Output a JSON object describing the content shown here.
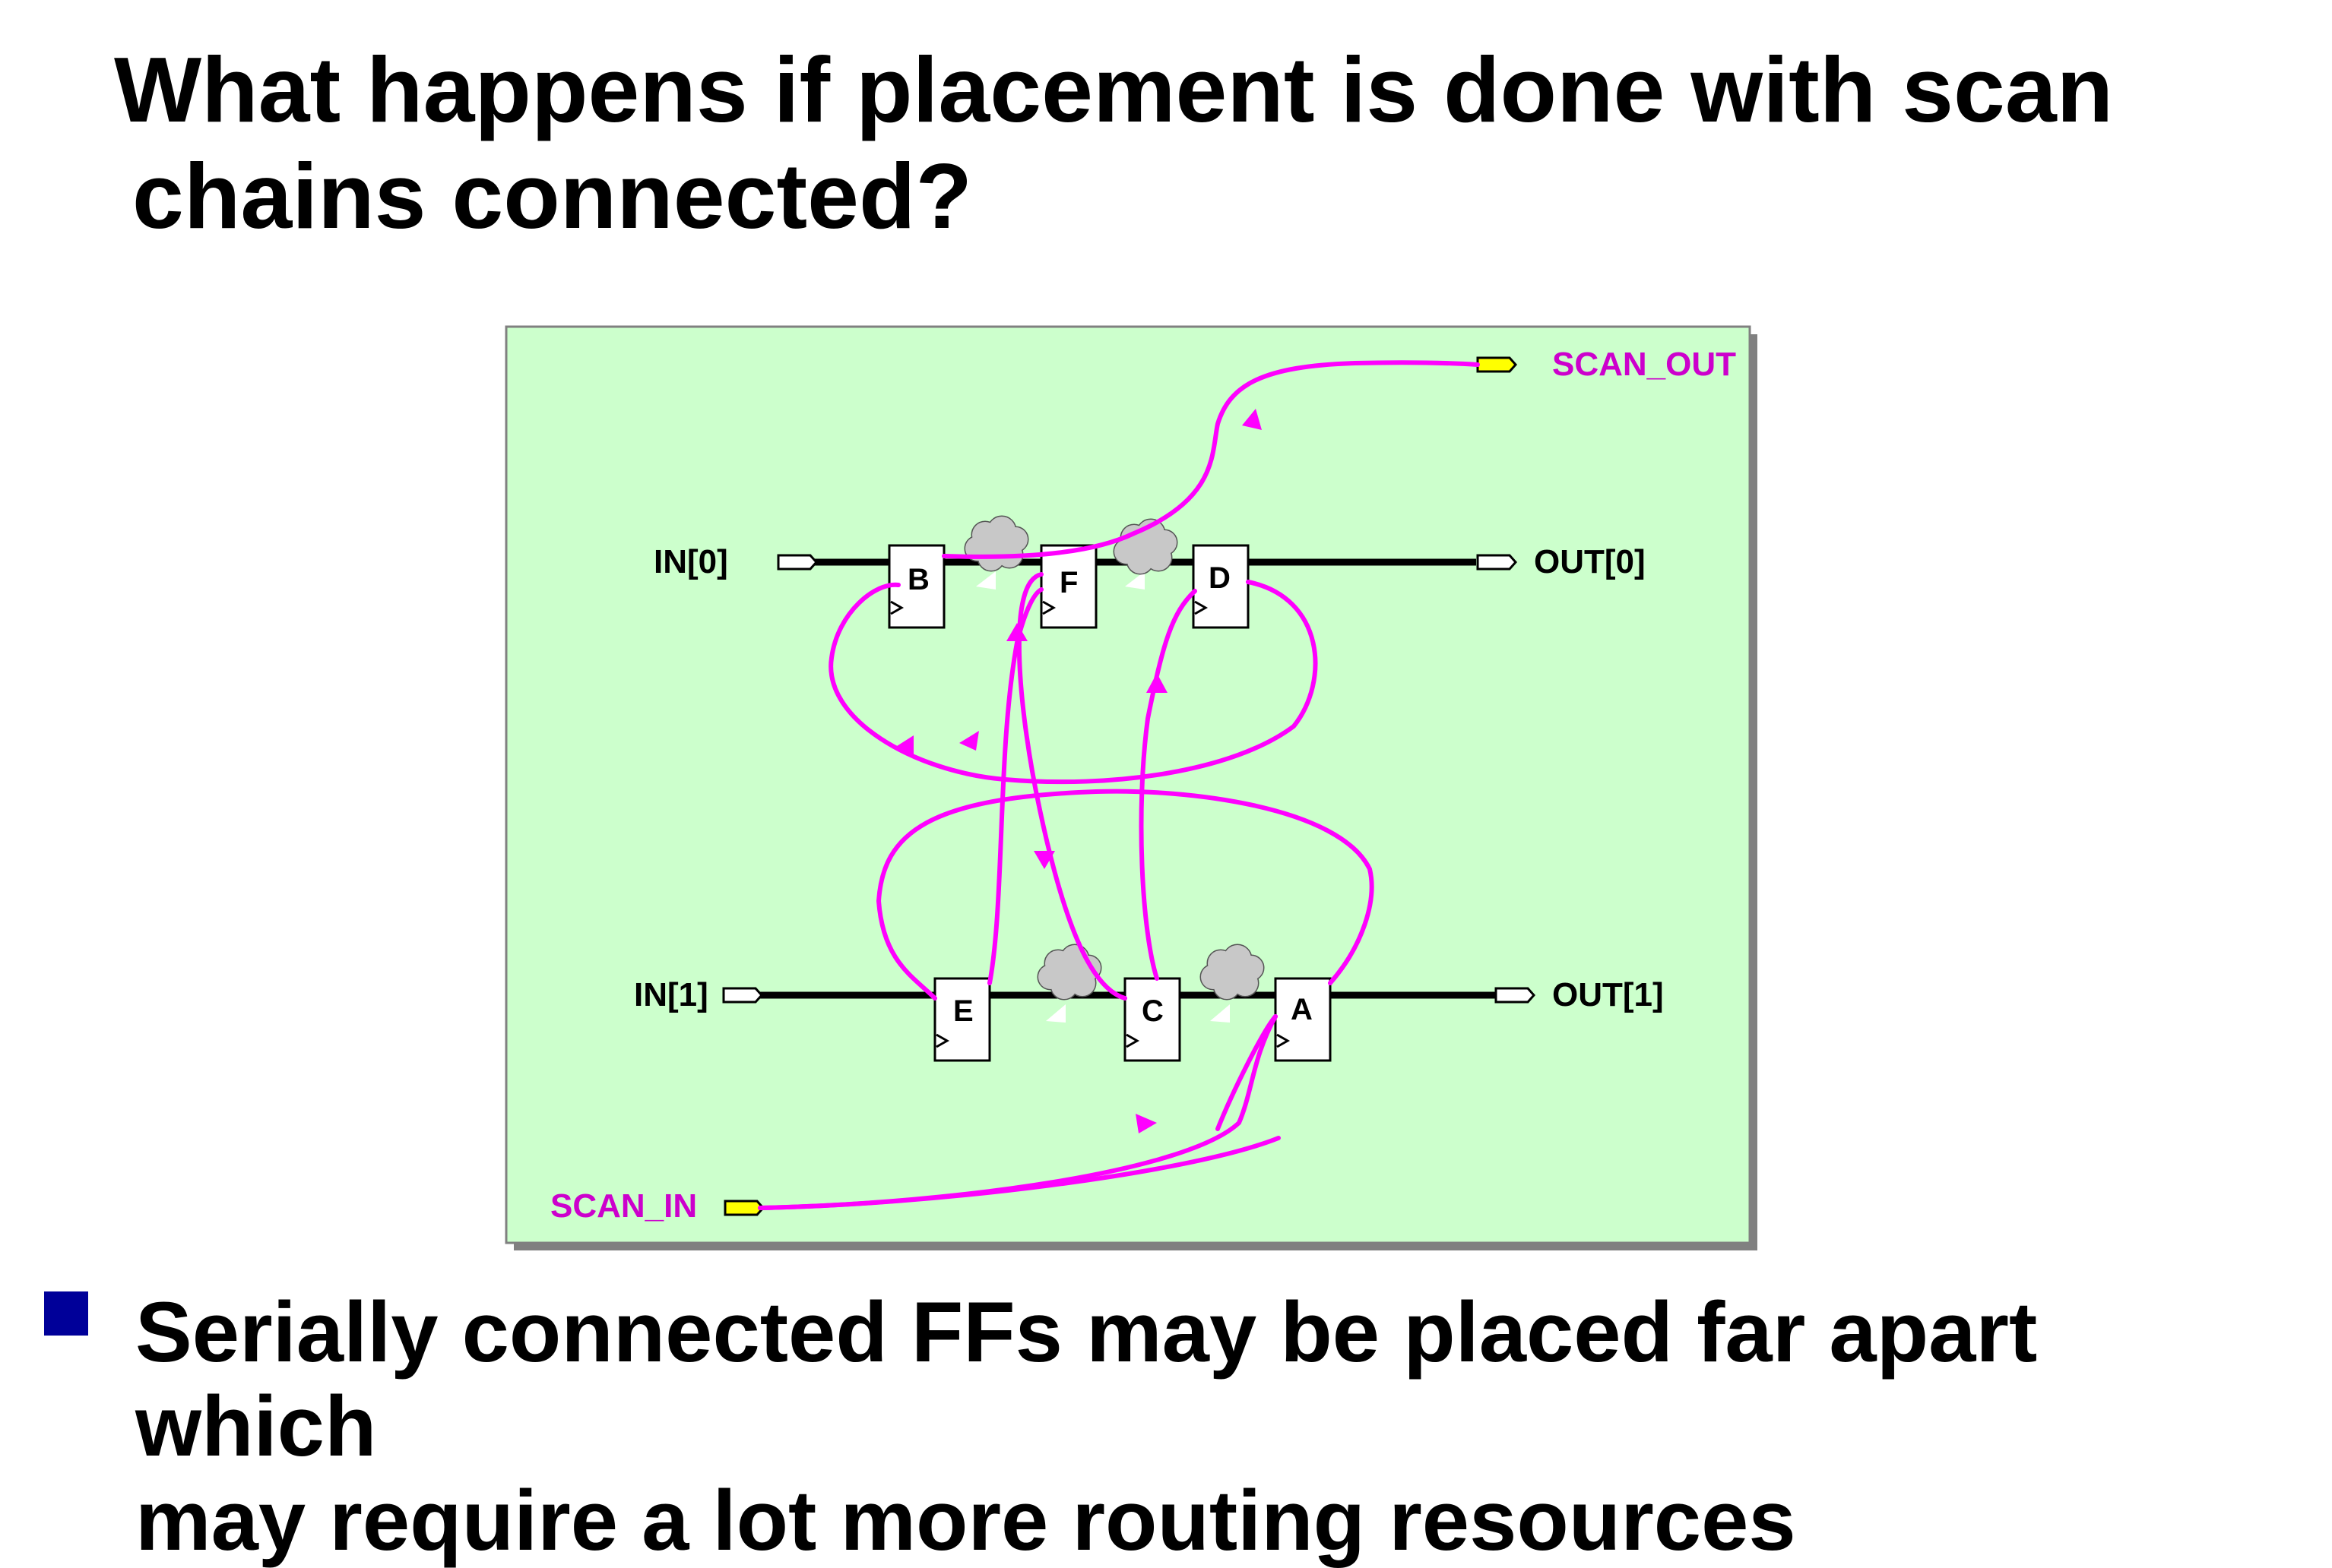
{
  "title": {
    "line1": "What happens if placement is done with scan",
    "line2": "chains connected?"
  },
  "diagram": {
    "scan_out_label": "SCAN_OUT",
    "scan_in_label": "SCAN_IN",
    "in0_label": "IN[0]",
    "in1_label": "IN[1]",
    "out0_label": "OUT[0]",
    "out1_label": "OUT[1]",
    "ff_b": "B",
    "ff_f": "F",
    "ff_d": "D",
    "ff_e": "E",
    "ff_c": "C",
    "ff_a": "A",
    "colors": {
      "background": "#ccffcc",
      "scan_path": "#ff00ff",
      "scan_label": "#cc00cc",
      "scan_port": "#ffff00",
      "cloud": "#c8c8c8"
    }
  },
  "bullets": [
    {
      "line1": "Serially connected FFs may be placed far apart which",
      "line2": "may require a lot more routing resources"
    }
  ]
}
